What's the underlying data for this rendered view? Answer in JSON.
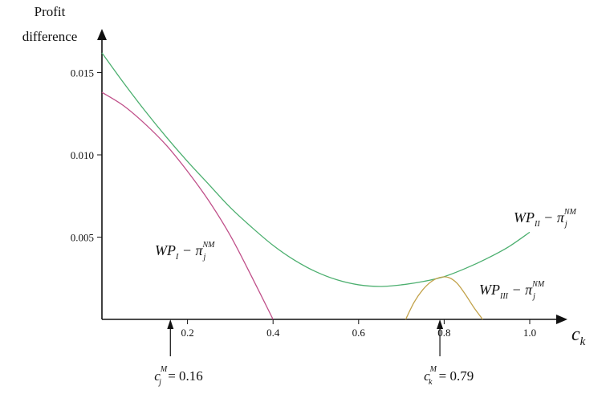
{
  "chart_data": {
    "type": "line",
    "title": "",
    "ylabel_lines": [
      "Profit",
      "difference"
    ],
    "xlabel": {
      "base": "c",
      "sub": "k"
    },
    "xlim": [
      0,
      1.05
    ],
    "ylim": [
      0,
      0.0168
    ],
    "xticks": [
      "0.2",
      "0.4",
      "0.6",
      "0.8",
      "1.0"
    ],
    "yticks": [
      "0.005",
      "0.010",
      "0.015"
    ],
    "grid": false,
    "legend": "none",
    "series": [
      {
        "label": {
          "prefix": "WP",
          "sub": "I",
          "minus": " − π",
          "sup": "NM",
          "subj": "j"
        },
        "color": "#c0508a",
        "x": [
          0.0,
          0.05,
          0.1,
          0.15,
          0.2,
          0.25,
          0.3,
          0.35,
          0.4
        ],
        "y": [
          0.0138,
          0.013,
          0.0119,
          0.0106,
          0.009,
          0.0072,
          0.0051,
          0.0026,
          0.0
        ]
      },
      {
        "label": {
          "prefix": "WP",
          "sub": "II",
          "minus": " − π",
          "sup": "NM",
          "subj": "j"
        },
        "color": "#4caf6f",
        "x": [
          0.0,
          0.05,
          0.1,
          0.15,
          0.2,
          0.25,
          0.3,
          0.35,
          0.4,
          0.45,
          0.5,
          0.55,
          0.6,
          0.65,
          0.7,
          0.75,
          0.8,
          0.85,
          0.9,
          0.95,
          1.0
        ],
        "y": [
          0.0162,
          0.0144,
          0.0127,
          0.0111,
          0.0096,
          0.0082,
          0.0068,
          0.0056,
          0.0045,
          0.0036,
          0.0029,
          0.0024,
          0.0021,
          0.002,
          0.0021,
          0.0023,
          0.0026,
          0.0031,
          0.0037,
          0.0044,
          0.0053
        ]
      },
      {
        "label": {
          "prefix": "WP",
          "sub": "III",
          "minus": " − π",
          "sup": "NM",
          "subj": "j"
        },
        "color": "#c2a24a",
        "x": [
          0.71,
          0.73,
          0.75,
          0.77,
          0.79,
          0.81,
          0.83,
          0.85,
          0.87,
          0.89
        ],
        "y": [
          0.0,
          0.00105,
          0.0018,
          0.0023,
          0.00255,
          0.00255,
          0.0022,
          0.0015,
          0.0007,
          0.0
        ]
      }
    ],
    "annotations": [
      {
        "base": "c",
        "sub": "j",
        "sup": "M",
        "text": " = 0.16",
        "x": 0.16
      },
      {
        "base": "c",
        "sub": "k",
        "sup": "M",
        "text": " = 0.79",
        "x": 0.79
      }
    ]
  }
}
